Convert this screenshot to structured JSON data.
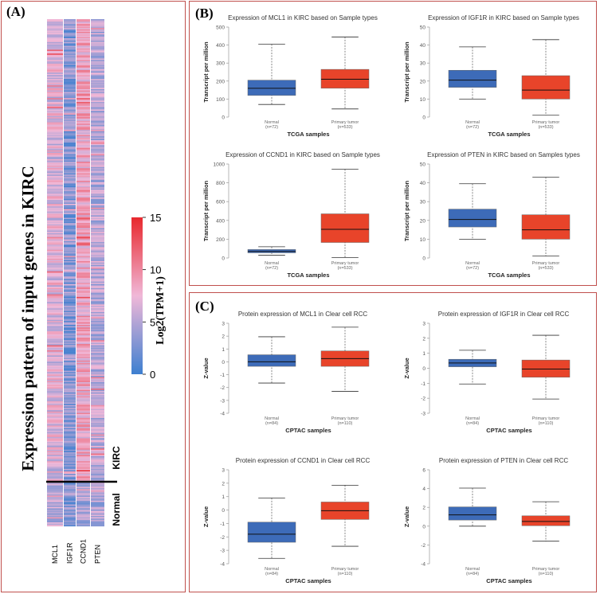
{
  "panels": {
    "a": "(A)",
    "b": "(B)",
    "c": "(C)"
  },
  "heatmap": {
    "title": "Expression pattern of input genes in KIRC",
    "genes": [
      "MCL1",
      "IGF1R",
      "CCND1",
      "PTEN"
    ],
    "group_labels": {
      "kirc": "KIRC",
      "normal": "Normal"
    },
    "colorbar": {
      "label": "Log2(TPM+1)",
      "ticks": [
        "15",
        "10",
        "5",
        "0"
      ],
      "min": 0,
      "max": 15,
      "colors": {
        "low": "#3d7fd0",
        "mid": "#f0b8d8",
        "high": "#e8282d"
      }
    }
  },
  "chart_data": [
    {
      "type": "box",
      "panel": "B",
      "title": "Expression of MCL1 in KIRC based on Sample types",
      "ylabel": "Transcript per million",
      "xlabel": "TCGA samples",
      "ylim": [
        0,
        500
      ],
      "yticks": [
        "0",
        "100",
        "200",
        "300",
        "400",
        "500"
      ],
      "categories": [
        "Normal",
        "Primary tumor"
      ],
      "counts": [
        "(n=72)",
        "(n=533)"
      ],
      "boxes": [
        {
          "min": 70,
          "q1": 120,
          "median": 160,
          "q3": 205,
          "max": 405,
          "color": "#3d6bb8"
        },
        {
          "min": 45,
          "q1": 160,
          "median": 210,
          "q3": 265,
          "max": 445,
          "color": "#e8442a"
        }
      ]
    },
    {
      "type": "box",
      "panel": "B",
      "title": "Expression of IGF1R in KIRC based on Sample types",
      "ylabel": "Transcript per million",
      "xlabel": "TCGA samples",
      "ylim": [
        0,
        50
      ],
      "yticks": [
        "0",
        "10",
        "20",
        "30",
        "40",
        "50"
      ],
      "categories": [
        "Normal",
        "Primary tumor"
      ],
      "counts": [
        "(n=72)",
        "(n=533)"
      ],
      "boxes": [
        {
          "min": 10,
          "q1": 16.5,
          "median": 20.5,
          "q3": 26,
          "max": 39,
          "color": "#3d6bb8"
        },
        {
          "min": 1,
          "q1": 10,
          "median": 15,
          "q3": 23,
          "max": 43,
          "color": "#e8442a"
        }
      ]
    },
    {
      "type": "box",
      "panel": "B",
      "title": "Expression of CCND1 in KIRC based on Sample types",
      "ylabel": "Transcript per million",
      "xlabel": "TCGA samples",
      "ylim": [
        0,
        1000
      ],
      "yticks": [
        "0",
        "200",
        "400",
        "600",
        "800",
        "1000"
      ],
      "categories": [
        "Normal",
        "Primary tumor"
      ],
      "counts": [
        "(n=72)",
        "(n=533)"
      ],
      "boxes": [
        {
          "min": 30,
          "q1": 55,
          "median": 70,
          "q3": 90,
          "max": 120,
          "color": "#3d6bb8"
        },
        {
          "min": 5,
          "q1": 165,
          "median": 305,
          "q3": 470,
          "max": 945,
          "color": "#e8442a"
        }
      ]
    },
    {
      "type": "box",
      "panel": "B",
      "title": "Expression of PTEN in KIRC based on Samples types",
      "ylabel": "Transcript per million",
      "xlabel": "TCGA samples",
      "ylim": [
        0,
        50
      ],
      "yticks": [
        "0",
        "10",
        "20",
        "30",
        "40",
        "50"
      ],
      "categories": [
        "Normal",
        "Primary tumor"
      ],
      "counts": [
        "(n=72)",
        "(n=533)"
      ],
      "boxes": [
        {
          "min": 10,
          "q1": 16.5,
          "median": 20.5,
          "q3": 26,
          "max": 39.5,
          "color": "#3d6bb8"
        },
        {
          "min": 1,
          "q1": 10,
          "median": 15,
          "q3": 23,
          "max": 43,
          "color": "#e8442a"
        }
      ]
    },
    {
      "type": "box",
      "panel": "C",
      "title": "Protein expression of MCL1 in Clear cell RCC",
      "ylabel": "Z-value",
      "xlabel": "CPTAC samples",
      "ylim": [
        -4,
        3
      ],
      "yticks": [
        "-4",
        "-3",
        "-2",
        "-1",
        "0",
        "1",
        "2",
        "3"
      ],
      "categories": [
        "Normal",
        "Primary tumor"
      ],
      "counts": [
        "(n=84)",
        "(n=110)"
      ],
      "boxes": [
        {
          "min": -1.65,
          "q1": -0.35,
          "median": 0.0,
          "q3": 0.55,
          "max": 1.95,
          "color": "#3d6bb8"
        },
        {
          "min": -2.3,
          "q1": -0.35,
          "median": 0.25,
          "q3": 0.85,
          "max": 2.7,
          "color": "#e8442a"
        }
      ]
    },
    {
      "type": "box",
      "panel": "C",
      "title": "Protein expression of IGF1R in Clear cell RCC",
      "ylabel": "Z-value",
      "xlabel": "CPTAC samples",
      "ylim": [
        -3,
        3
      ],
      "yticks": [
        "-3",
        "-2",
        "-1",
        "0",
        "1",
        "2",
        "3"
      ],
      "categories": [
        "Normal",
        "Primary tumor"
      ],
      "counts": [
        "(n=84)",
        "(n=110)"
      ],
      "boxes": [
        {
          "min": -1.05,
          "q1": 0.1,
          "median": 0.35,
          "q3": 0.6,
          "max": 1.2,
          "color": "#3d6bb8"
        },
        {
          "min": -2.05,
          "q1": -0.6,
          "median": -0.05,
          "q3": 0.55,
          "max": 2.2,
          "color": "#e8442a"
        }
      ]
    },
    {
      "type": "box",
      "panel": "C",
      "title": "Protein expression of CCND1 in Clear cell RCC",
      "ylabel": "Z-value",
      "xlabel": "CPTAC samples",
      "ylim": [
        -4,
        3
      ],
      "yticks": [
        "-4",
        "-3",
        "-2",
        "-1",
        "0",
        "1",
        "2",
        "3"
      ],
      "categories": [
        "Normal",
        "Primary tumor"
      ],
      "counts": [
        "(n=84)",
        "(n=110)"
      ],
      "boxes": [
        {
          "min": -3.6,
          "q1": -2.4,
          "median": -1.8,
          "q3": -0.9,
          "max": 0.9,
          "color": "#3d6bb8"
        },
        {
          "min": -2.7,
          "q1": -0.7,
          "median": -0.05,
          "q3": 0.6,
          "max": 1.85,
          "color": "#e8442a"
        }
      ]
    },
    {
      "type": "box",
      "panel": "C",
      "title": "Protein expression of PTEN in Clear cell RCC",
      "ylabel": "Z-value",
      "xlabel": "CPTAC samples",
      "ylim": [
        -4,
        6
      ],
      "yticks": [
        "-4",
        "-2",
        "0",
        "2",
        "4",
        "6"
      ],
      "categories": [
        "Normal",
        "Primary tumor"
      ],
      "counts": [
        "(n=84)",
        "(n=110)"
      ],
      "boxes": [
        {
          "min": 0.0,
          "q1": 0.65,
          "median": 1.2,
          "q3": 2.05,
          "max": 4.05,
          "color": "#3d6bb8"
        },
        {
          "min": -1.6,
          "q1": 0.05,
          "median": 0.5,
          "q3": 1.1,
          "max": 2.6,
          "color": "#e8442a"
        }
      ]
    }
  ]
}
